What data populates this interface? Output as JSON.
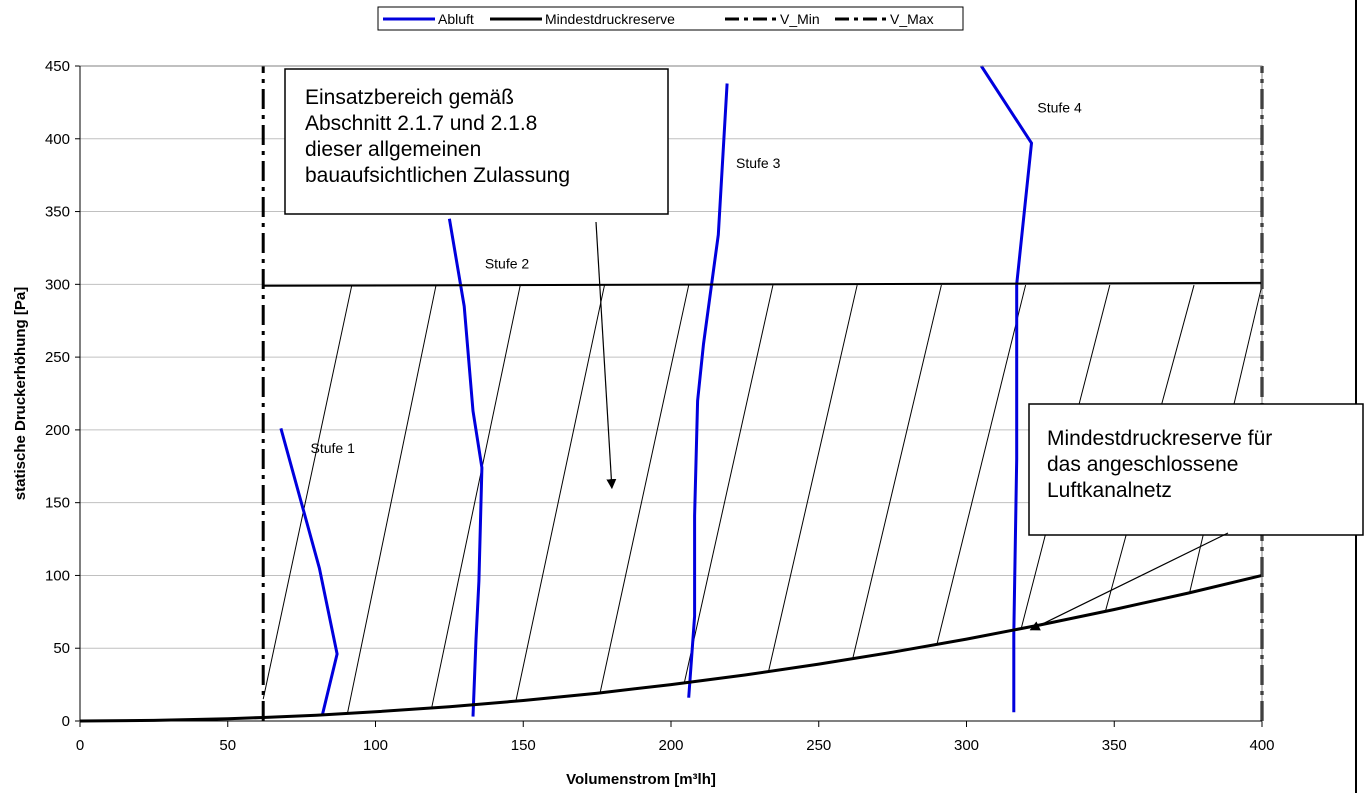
{
  "chart_data": {
    "type": "line",
    "xlabel": "Volumenstrom [m³lh]",
    "ylabel": "statische Druckerhöhung [Pa]",
    "xlim": [
      0,
      400
    ],
    "ylim": [
      0,
      450
    ],
    "x_ticks": [
      "0",
      "50",
      "100",
      "150",
      "200",
      "250",
      "300",
      "350",
      "400"
    ],
    "y_ticks": [
      "0",
      "50",
      "100",
      "150",
      "200",
      "250",
      "300",
      "350",
      "400",
      "450"
    ],
    "grid": "horizontal",
    "legend_position": "top-center",
    "legend": [
      "Abluft",
      "Mindestdruckreserve",
      "V_Min",
      "V_Max"
    ],
    "series": [
      {
        "name": "Abluft",
        "label": "Stufe 1",
        "color": "#0000dd",
        "points": [
          [
            68,
            201
          ],
          [
            81,
            105
          ],
          [
            87,
            46
          ],
          [
            82,
            4
          ]
        ]
      },
      {
        "name": "Abluft",
        "label": "Stufe 2",
        "color": "#0000dd",
        "points": [
          [
            125,
            345
          ],
          [
            130,
            285
          ],
          [
            133,
            213
          ],
          [
            136,
            174
          ],
          [
            135,
            96
          ],
          [
            134,
            56
          ],
          [
            133,
            3
          ]
        ]
      },
      {
        "name": "Abluft",
        "label": "Stufe 3",
        "color": "#0000dd",
        "points": [
          [
            219,
            438
          ],
          [
            216,
            334
          ],
          [
            211,
            259
          ],
          [
            209,
            220
          ],
          [
            208,
            141
          ],
          [
            208,
            72
          ],
          [
            206,
            16
          ]
        ]
      },
      {
        "name": "Abluft",
        "label": "Stufe 4",
        "color": "#0000dd",
        "points": [
          [
            305,
            450
          ],
          [
            322,
            397
          ],
          [
            317,
            300
          ],
          [
            317,
            180
          ],
          [
            316,
            60
          ],
          [
            316,
            6
          ]
        ]
      },
      {
        "name": "Mindestdruckreserve",
        "color": "#000000",
        "points": [
          [
            0,
            0
          ],
          [
            25,
            0.4
          ],
          [
            50,
            1.6
          ],
          [
            62,
            2.4
          ],
          [
            80,
            4
          ],
          [
            100,
            6.3
          ],
          [
            125,
            9.8
          ],
          [
            150,
            14.1
          ],
          [
            175,
            19.1
          ],
          [
            200,
            25
          ],
          [
            225,
            31.6
          ],
          [
            250,
            39.1
          ],
          [
            275,
            47.3
          ],
          [
            300,
            56.3
          ],
          [
            325,
            66
          ],
          [
            350,
            76.6
          ],
          [
            375,
            87.9
          ],
          [
            400,
            100
          ]
        ]
      },
      {
        "name": "Mindestdruckreserve",
        "color": "#000000",
        "points": [
          [
            62,
            299
          ],
          [
            400,
            301
          ]
        ]
      },
      {
        "name": "V_Min",
        "color": "#000000",
        "dashed": true,
        "points": [
          [
            62,
            0
          ],
          [
            62,
            450
          ]
        ]
      },
      {
        "name": "V_Max",
        "color": "#000000",
        "dashed": true,
        "points": [
          [
            400,
            0
          ],
          [
            400,
            450
          ]
        ]
      }
    ],
    "annotations": [
      {
        "text": [
          "Einsatzbereich gemäß",
          "Abschnitt 2.1.7 und 2.1.8",
          "dieser allgemeinen",
          "bauaufsichtlichen Zulassung"
        ],
        "arrow_to": [
          180,
          160
        ]
      },
      {
        "text": [
          "Mindestdruckreserve für",
          "das angeschlossene",
          "Luftkanalnetz"
        ],
        "arrow_to": [
          321,
          64
        ]
      }
    ]
  }
}
